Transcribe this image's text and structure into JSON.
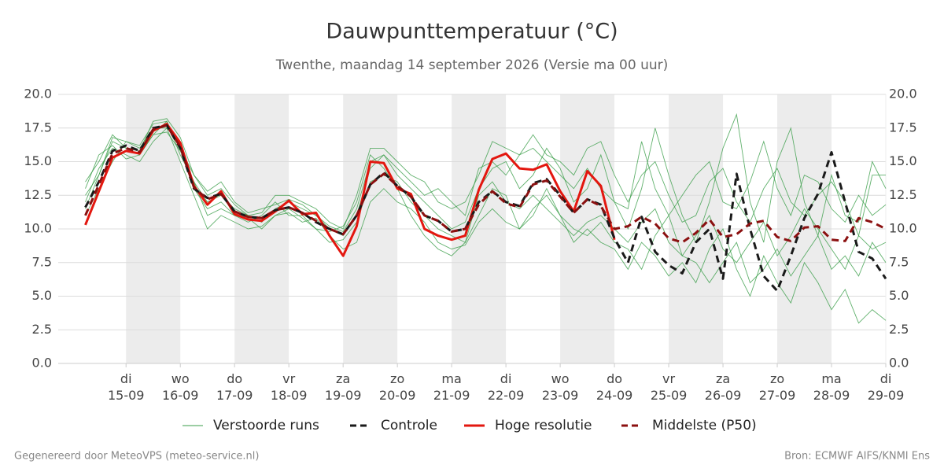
{
  "chart_data": {
    "type": "line",
    "title": "Dauwpunttemperatuur (°C)",
    "subtitle": "Twenthe, maandag 14 september 2026 (Versie ma 00 uur)",
    "footer_left": "Gegenereerd door MeteoVPS (meteo-service.nl)",
    "footer_right": "Bron: ECMWF AIFS/KNMI Ens",
    "x": [
      0.25,
      0.5,
      0.75,
      1,
      1.25,
      1.5,
      1.75,
      2,
      2.25,
      2.5,
      2.75,
      3,
      3.25,
      3.5,
      3.75,
      4,
      4.25,
      4.5,
      4.75,
      5,
      5.25,
      5.5,
      5.75,
      6,
      6.25,
      6.5,
      6.75,
      7,
      7.25,
      7.5,
      7.75,
      8,
      8.25,
      8.5,
      8.75,
      9,
      9.25,
      9.5,
      9.75,
      10,
      10.25,
      10.5,
      10.75,
      11,
      11.25,
      11.5,
      11.75,
      12,
      12.25,
      12.5,
      12.75,
      13,
      13.25,
      13.5,
      13.75,
      14,
      14.25,
      14.5,
      14.75,
      15
    ],
    "xlim": [
      -0.25,
      15
    ],
    "xticks": [
      {
        "value": 1,
        "label": "di 15-09"
      },
      {
        "value": 2,
        "label": "wo 16-09"
      },
      {
        "value": 3,
        "label": "do 17-09"
      },
      {
        "value": 4,
        "label": "vr 18-09"
      },
      {
        "value": 5,
        "label": "za 19-09"
      },
      {
        "value": 6,
        "label": "zo 20-09"
      },
      {
        "value": 7,
        "label": "ma 21-09"
      },
      {
        "value": 8,
        "label": "di 22-09"
      },
      {
        "value": 9,
        "label": "wo 23-09"
      },
      {
        "value": 10,
        "label": "do 24-09"
      },
      {
        "value": 11,
        "label": "vr 25-09"
      },
      {
        "value": 12,
        "label": "za 26-09"
      },
      {
        "value": 13,
        "label": "zo 27-09"
      },
      {
        "value": 14,
        "label": "ma 28-09"
      },
      {
        "value": 15,
        "label": "di 29-09"
      }
    ],
    "ylim": [
      0,
      20
    ],
    "yticks": [
      {
        "value": 0,
        "label": "0.0"
      },
      {
        "value": 2.5,
        "label": "2.5"
      },
      {
        "value": 5,
        "label": "5.0"
      },
      {
        "value": 7.5,
        "label": "7.5"
      },
      {
        "value": 10,
        "label": "10.0"
      },
      {
        "value": 12.5,
        "label": "12.5"
      },
      {
        "value": 15,
        "label": "15.0"
      },
      {
        "value": 17.5,
        "label": "17.5"
      },
      {
        "value": 20,
        "label": "20.0"
      }
    ],
    "grid": true,
    "ensemble": {
      "name": "Verstoorde runs",
      "color": "#3a9e48",
      "members": [
        [
          12.5,
          14.0,
          16.5,
          16.0,
          15.5,
          17.0,
          18.0,
          15.5,
          13.5,
          12.0,
          12.5,
          11.5,
          11.0,
          10.5,
          11.5,
          12.0,
          11.5,
          11.0,
          10.0,
          9.5,
          11.0,
          14.5,
          15.5,
          14.0,
          13.0,
          12.0,
          11.0,
          10.0,
          10.5,
          13.0,
          14.5,
          15.0,
          13.0,
          14.0,
          16.0,
          14.5,
          12.0,
          13.0,
          15.5,
          12.0,
          10.0,
          13.0,
          17.5,
          14.0,
          11.0,
          9.0,
          12.0,
          16.0,
          18.5,
          12.0,
          9.0,
          15.0,
          17.5,
          12.0,
          9.5,
          14.0,
          11.0,
          10.5,
          15.0,
          13.0
        ],
        [
          11.0,
          13.0,
          15.0,
          16.5,
          16.0,
          17.5,
          17.5,
          16.5,
          13.0,
          11.5,
          12.0,
          11.0,
          10.5,
          11.0,
          12.0,
          11.0,
          11.0,
          10.0,
          9.8,
          10.2,
          12.0,
          15.5,
          14.5,
          13.0,
          11.0,
          9.5,
          8.5,
          8.0,
          9.0,
          11.0,
          13.0,
          12.5,
          10.0,
          11.0,
          13.0,
          11.0,
          9.0,
          10.0,
          9.0,
          8.5,
          7.0,
          9.0,
          8.0,
          6.5,
          7.5,
          6.0,
          8.5,
          10.0,
          7.0,
          5.0,
          8.0,
          6.0,
          4.5,
          7.5,
          6.0,
          4.0,
          5.5,
          3.0,
          4.0,
          3.2
        ],
        [
          13.5,
          15.0,
          17.0,
          16.0,
          15.8,
          18.0,
          18.2,
          16.8,
          14.0,
          12.5,
          13.0,
          11.8,
          11.0,
          11.2,
          12.5,
          12.5,
          12.0,
          11.5,
          10.5,
          10.0,
          12.5,
          16.0,
          16.0,
          15.0,
          14.0,
          13.5,
          12.0,
          11.5,
          12.0,
          14.0,
          16.5,
          16.0,
          15.5,
          17.0,
          15.5,
          15.0,
          14.0,
          16.0,
          16.5,
          14.0,
          12.0,
          14.0,
          15.0,
          12.5,
          10.5,
          11.0,
          13.5,
          14.5,
          12.0,
          10.5,
          13.0,
          14.5,
          12.0,
          11.0,
          12.5,
          13.5,
          12.0,
          9.5,
          14.0,
          14.0
        ],
        [
          12.0,
          14.5,
          16.0,
          15.5,
          15.0,
          16.5,
          17.5,
          15.0,
          12.5,
          10.0,
          11.0,
          10.5,
          10.0,
          10.2,
          11.0,
          11.2,
          10.5,
          10.8,
          9.5,
          8.5,
          9.0,
          12.0,
          13.0,
          12.0,
          11.5,
          10.5,
          9.0,
          8.5,
          8.8,
          10.5,
          11.5,
          10.5,
          10.0,
          11.5,
          12.5,
          11.0,
          10.0,
          9.5,
          10.5,
          9.0,
          8.5,
          7.0,
          9.5,
          11.0,
          8.0,
          7.5,
          6.0,
          7.5,
          9.0,
          6.0,
          7.0,
          8.5,
          6.5,
          8.0,
          9.5,
          7.0,
          8.0,
          6.5,
          9.0,
          7.5
        ],
        [
          11.5,
          14.0,
          16.8,
          16.5,
          16.2,
          17.8,
          18.0,
          16.0,
          14.0,
          12.8,
          13.5,
          12.0,
          11.2,
          11.5,
          11.8,
          12.2,
          11.8,
          11.0,
          10.2,
          9.8,
          11.5,
          15.0,
          15.5,
          14.5,
          13.5,
          12.5,
          13.0,
          12.0,
          11.0,
          14.5,
          15.0,
          14.0,
          15.5,
          16.0,
          15.0,
          14.0,
          13.0,
          14.5,
          13.0,
          12.0,
          11.5,
          16.5,
          13.0,
          11.0,
          12.5,
          14.0,
          15.0,
          12.0,
          11.5,
          13.5,
          16.5,
          13.0,
          11.0,
          14.0,
          13.5,
          11.5,
          10.5,
          12.5,
          11.0,
          11.8
        ],
        [
          13.0,
          15.5,
          16.2,
          15.2,
          15.5,
          17.0,
          17.2,
          15.8,
          13.5,
          11.0,
          11.5,
          11.0,
          10.8,
          10.0,
          11.0,
          11.5,
          10.8,
          10.0,
          9.0,
          9.2,
          10.5,
          13.5,
          14.0,
          13.5,
          12.0,
          11.0,
          10.0,
          9.5,
          9.0,
          12.5,
          13.5,
          12.0,
          11.5,
          12.5,
          11.5,
          10.5,
          9.5,
          10.5,
          11.0,
          10.0,
          9.0,
          10.5,
          11.5,
          9.0,
          8.0,
          9.5,
          11.0,
          8.5,
          7.5,
          9.0,
          10.5,
          8.0,
          9.5,
          11.5,
          10.0,
          8.5,
          7.0,
          9.5,
          8.5,
          9.0
        ]
      ]
    },
    "series": [
      {
        "name": "Controle",
        "color": "#1a1a1a",
        "dash": true,
        "values": [
          11.6,
          13.5,
          15.8,
          16.2,
          15.8,
          17.5,
          17.7,
          16.0,
          13.0,
          12.3,
          12.6,
          11.3,
          10.9,
          10.8,
          11.4,
          11.6,
          11.2,
          10.5,
          10.0,
          9.6,
          11.0,
          13.3,
          14.2,
          13.2,
          12.4,
          11.0,
          10.6,
          9.8,
          10.0,
          12.0,
          12.8,
          12.0,
          11.7,
          13.4,
          13.7,
          12.5,
          11.2,
          12.2,
          11.8,
          9.3,
          7.5,
          10.9,
          8.3,
          7.3,
          6.7,
          9.0,
          10.0,
          6.3,
          14.1,
          10.0,
          6.5,
          5.4,
          8.0,
          10.8,
          12.6,
          15.7,
          12.0,
          8.3,
          7.8,
          6.3
        ]
      },
      {
        "name": "Hoge resolutie",
        "color": "#e3170f",
        "dash": false,
        "values": [
          10.3,
          12.8,
          15.3,
          15.8,
          15.6,
          17.3,
          17.8,
          16.4,
          13.2,
          11.8,
          12.8,
          11.1,
          10.7,
          10.6,
          11.3,
          12.1,
          11.1,
          11.2,
          9.5,
          8.0,
          10.2,
          15.0,
          14.9,
          13.0,
          12.6,
          10.0,
          9.5,
          9.2,
          9.5,
          12.9,
          15.2,
          15.6,
          14.5,
          14.4,
          14.8,
          12.8,
          11.3,
          14.3,
          13.2,
          9.2,
          null,
          null,
          null,
          null,
          null,
          null,
          null,
          null,
          null,
          null,
          null,
          null,
          null,
          null,
          null,
          null,
          null,
          null,
          null,
          null
        ]
      },
      {
        "name": "Middelste (P50)",
        "color": "#8b1010",
        "dash": true,
        "values": [
          11.0,
          13.3,
          15.6,
          16.0,
          15.7,
          17.4,
          17.7,
          16.1,
          13.1,
          12.2,
          12.6,
          11.3,
          10.9,
          10.8,
          11.4,
          11.6,
          11.2,
          10.6,
          10.0,
          9.6,
          11.0,
          13.3,
          14.1,
          13.2,
          12.4,
          11.0,
          10.6,
          9.8,
          10.0,
          11.8,
          12.8,
          11.9,
          11.6,
          13.3,
          13.6,
          12.4,
          11.2,
          12.2,
          11.7,
          10.0,
          10.2,
          10.9,
          10.4,
          9.3,
          9.0,
          9.7,
          10.7,
          9.4,
          9.6,
          10.4,
          10.6,
          9.4,
          9.1,
          10.1,
          10.2,
          9.2,
          9.1,
          10.8,
          10.5,
          10.0
        ]
      }
    ]
  }
}
